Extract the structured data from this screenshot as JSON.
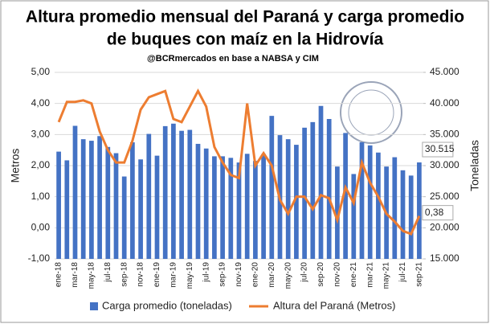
{
  "chart_data": {
    "type": "bar-line",
    "title": "Altura promedio mensual del Paraná y carga promedio",
    "title_line2": "de buques con maíz en la Hidrovía",
    "subtitle": "@BCRmercados  en base a NABSA y CIM",
    "y_label": "Metros",
    "y2_label": "Toneladas",
    "categories": [
      "ene-18",
      null,
      "mar-18",
      null,
      "may-18",
      null,
      "jul-18",
      null,
      "sep-18",
      null,
      "nov-18",
      null,
      "ene-19",
      null,
      "mar-19",
      null,
      "may-19",
      null,
      "jul-19",
      null,
      "sep-19",
      null,
      "nov-19",
      null,
      "ene-20",
      null,
      "mar-20",
      null,
      "may-20",
      null,
      "jul-20",
      null,
      "sep-20",
      null,
      "nov-20",
      null,
      "ene-21",
      null,
      "mar-21",
      null,
      "may-21",
      null,
      "jul-21",
      null,
      "sep-21"
    ],
    "ylim": [
      -1,
      5
    ],
    "yticks": [
      {
        "value": -1,
        "label": "-1,00"
      },
      {
        "value": 0,
        "label": "0,00"
      },
      {
        "value": 1,
        "label": "1,00"
      },
      {
        "value": 2,
        "label": "2,00"
      },
      {
        "value": 3,
        "label": "3,00"
      },
      {
        "value": 4,
        "label": "4,00"
      },
      {
        "value": 5,
        "label": "5,00"
      }
    ],
    "y2lim": [
      15000,
      45000
    ],
    "y2ticks": [
      {
        "value": 15000,
        "label": "15.000"
      },
      {
        "value": 20000,
        "label": "20.000"
      },
      {
        "value": 25000,
        "label": "25.000"
      },
      {
        "value": 30000,
        "label": "30.000"
      },
      {
        "value": 35000,
        "label": "35.000"
      },
      {
        "value": 40000,
        "label": "40.000"
      },
      {
        "value": 45000,
        "label": "45.000"
      }
    ],
    "series": [
      {
        "name": "Carga promedio (toneladas)",
        "kind": "bar",
        "axis": "y2",
        "color": "#4472c4",
        "values": [
          32250,
          30850,
          36400,
          34250,
          34000,
          34750,
          33000,
          32000,
          28250,
          33750,
          31000,
          35100,
          31600,
          36350,
          36750,
          35600,
          35750,
          33500,
          32750,
          31500,
          31500,
          31250,
          30500,
          31900,
          30750,
          31850,
          38000,
          34900,
          34250,
          33350,
          36100,
          37000,
          39600,
          37500,
          29850,
          35250,
          28650,
          33750,
          33250,
          32100,
          29850,
          31350,
          29250,
          28400,
          30515
        ],
        "value_labels": [
          null,
          null,
          null,
          null,
          null,
          null,
          null,
          null,
          null,
          null,
          null,
          null,
          null,
          null,
          null,
          null,
          null,
          null,
          null,
          null,
          null,
          null,
          null,
          null,
          null,
          null,
          null,
          null,
          null,
          null,
          null,
          null,
          null,
          null,
          null,
          null,
          null,
          null,
          null,
          null,
          null,
          null,
          null,
          null,
          "30.515"
        ]
      },
      {
        "name": "Altura del Paraná (Metros)",
        "kind": "line",
        "axis": "y",
        "color": "#ed7d31",
        "values": [
          3.4,
          4.05,
          4.05,
          4.1,
          4.0,
          3.1,
          2.5,
          2.1,
          2.1,
          2.8,
          3.8,
          4.2,
          4.3,
          4.4,
          3.5,
          3.4,
          3.9,
          4.4,
          3.9,
          2.6,
          2.1,
          1.7,
          1.6,
          4.0,
          2.0,
          2.4,
          2.0,
          0.9,
          0.45,
          1.0,
          1.0,
          0.6,
          1.05,
          0.95,
          0.25,
          1.3,
          0.8,
          2.1,
          1.45,
          1.0,
          0.45,
          0.2,
          -0.1,
          -0.2,
          0.38
        ],
        "value_labels": [
          null,
          null,
          null,
          null,
          null,
          null,
          null,
          null,
          null,
          null,
          null,
          null,
          null,
          null,
          null,
          null,
          null,
          null,
          null,
          null,
          null,
          null,
          null,
          null,
          null,
          null,
          null,
          null,
          null,
          null,
          null,
          null,
          null,
          null,
          null,
          null,
          null,
          null,
          null,
          null,
          null,
          null,
          null,
          null,
          "0,38"
        ]
      }
    ]
  }
}
